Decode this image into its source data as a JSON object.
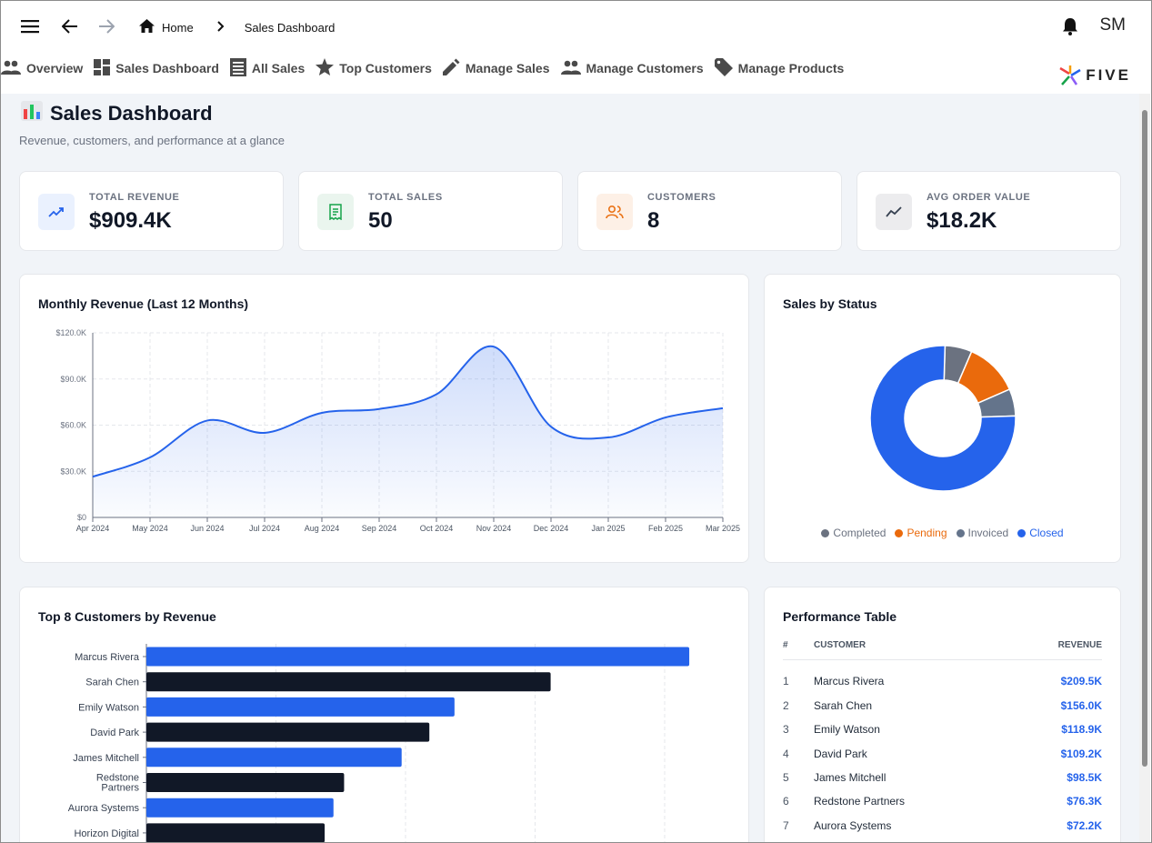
{
  "breadcrumb": {
    "home": "Home",
    "current": "Sales Dashboard"
  },
  "user": {
    "initials": "SM"
  },
  "nav": [
    {
      "label": "Overview",
      "icon": "people-icon"
    },
    {
      "label": "Sales Dashboard",
      "icon": "dashboard-icon"
    },
    {
      "label": "All Sales",
      "icon": "list-icon"
    },
    {
      "label": "Top Customers",
      "icon": "star-icon"
    },
    {
      "label": "Manage Sales",
      "icon": "pencil-icon"
    },
    {
      "label": "Manage Customers",
      "icon": "people-icon"
    },
    {
      "label": "Manage Products",
      "icon": "tag-icon"
    }
  ],
  "logo": {
    "text": "FIVE"
  },
  "page": {
    "title": "Sales Dashboard",
    "subtitle": "Revenue, customers, and performance at a glance"
  },
  "kpis": [
    {
      "label": "TOTAL REVENUE",
      "value": "$909.4K",
      "icon": "trending-up-icon",
      "bg": "#eaf1fe",
      "fg": "#2563eb"
    },
    {
      "label": "TOTAL SALES",
      "value": "50",
      "icon": "receipt-icon",
      "bg": "#eaf5ee",
      "fg": "#16a34a"
    },
    {
      "label": "CUSTOMERS",
      "value": "8",
      "icon": "users-icon",
      "bg": "#fdf0e6",
      "fg": "#ea7317"
    },
    {
      "label": "AVG ORDER VALUE",
      "value": "$18.2K",
      "icon": "chart-line-icon",
      "bg": "#ececee",
      "fg": "#374151"
    }
  ],
  "monthly": {
    "title": "Monthly Revenue (Last 12 Months)",
    "chart_data": {
      "type": "area",
      "categories": [
        "Apr 2024",
        "May 2024",
        "Jun 2024",
        "Jul 2024",
        "Aug 2024",
        "Sep 2024",
        "Oct 2024",
        "Nov 2024",
        "Dec 2024",
        "Jan 2025",
        "Feb 2025",
        "Mar 2025"
      ],
      "values": [
        26500,
        39000,
        63000,
        55000,
        68000,
        70500,
        80000,
        111000,
        59000,
        52000,
        65000,
        71000
      ],
      "y_ticks": [
        "$0",
        "$30.0K",
        "$60.0K",
        "$90.0K",
        "$120.0K"
      ],
      "ylim": [
        0,
        120000
      ],
      "grid": true,
      "color": "#2563eb"
    }
  },
  "status": {
    "title": "Sales by Status",
    "chart_data": {
      "type": "pie",
      "labels": [
        "Completed",
        "Pending",
        "Invoiced",
        "Closed"
      ],
      "values": [
        3,
        6,
        3,
        38
      ],
      "colors": [
        "#6b7280",
        "#ea6a0c",
        "#64748b",
        "#2563eb"
      ],
      "legend": "bottom"
    }
  },
  "top_customers": {
    "title": "Top 8 Customers by Revenue",
    "chart_data": {
      "type": "bar",
      "orientation": "horizontal",
      "categories": [
        "Marcus Rivera",
        "Sarah Chen",
        "Emily Watson",
        "David Park",
        "James Mitchell",
        "Redstone Partners",
        "Aurora Systems",
        "Horizon Digital"
      ],
      "values": [
        209.5,
        156.0,
        118.9,
        109.2,
        98.5,
        76.3,
        72.2,
        68.8
      ],
      "colors": [
        "#2563eb",
        "#111827"
      ],
      "xlim": [
        0,
        220
      ],
      "grid": true
    }
  },
  "performance": {
    "title": "Performance Table",
    "headers": {
      "num": "#",
      "customer": "CUSTOMER",
      "revenue": "REVENUE"
    },
    "rows": [
      {
        "n": "1",
        "customer": "Marcus Rivera",
        "revenue": "$209.5K"
      },
      {
        "n": "2",
        "customer": "Sarah Chen",
        "revenue": "$156.0K"
      },
      {
        "n": "3",
        "customer": "Emily Watson",
        "revenue": "$118.9K"
      },
      {
        "n": "4",
        "customer": "David Park",
        "revenue": "$109.2K"
      },
      {
        "n": "5",
        "customer": "James Mitchell",
        "revenue": "$98.5K"
      },
      {
        "n": "6",
        "customer": "Redstone Partners",
        "revenue": "$76.3K"
      },
      {
        "n": "7",
        "customer": "Aurora Systems",
        "revenue": "$72.2K"
      }
    ]
  }
}
